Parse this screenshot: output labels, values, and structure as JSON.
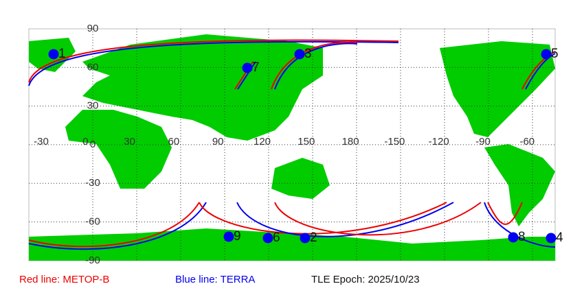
{
  "latitude_labels": [
    "90",
    "60",
    "30",
    "0",
    "-30",
    "-60",
    "-90"
  ],
  "longitude_labels": [
    "-30",
    "0",
    "30",
    "60",
    "90",
    "120",
    "150",
    "180",
    "-150",
    "-120",
    "-90",
    "-60"
  ],
  "satellites": [
    {
      "label": "1"
    },
    {
      "label": "7"
    },
    {
      "label": "3"
    },
    {
      "label": "5"
    },
    {
      "label": "9"
    },
    {
      "label": "6"
    },
    {
      "label": "2"
    },
    {
      "label": "8"
    },
    {
      "label": "4"
    }
  ],
  "legend": {
    "red": "Red line: METOP-B",
    "blue": "Blue line: TERRA",
    "epoch": "TLE Epoch: 2025/10/23"
  }
}
